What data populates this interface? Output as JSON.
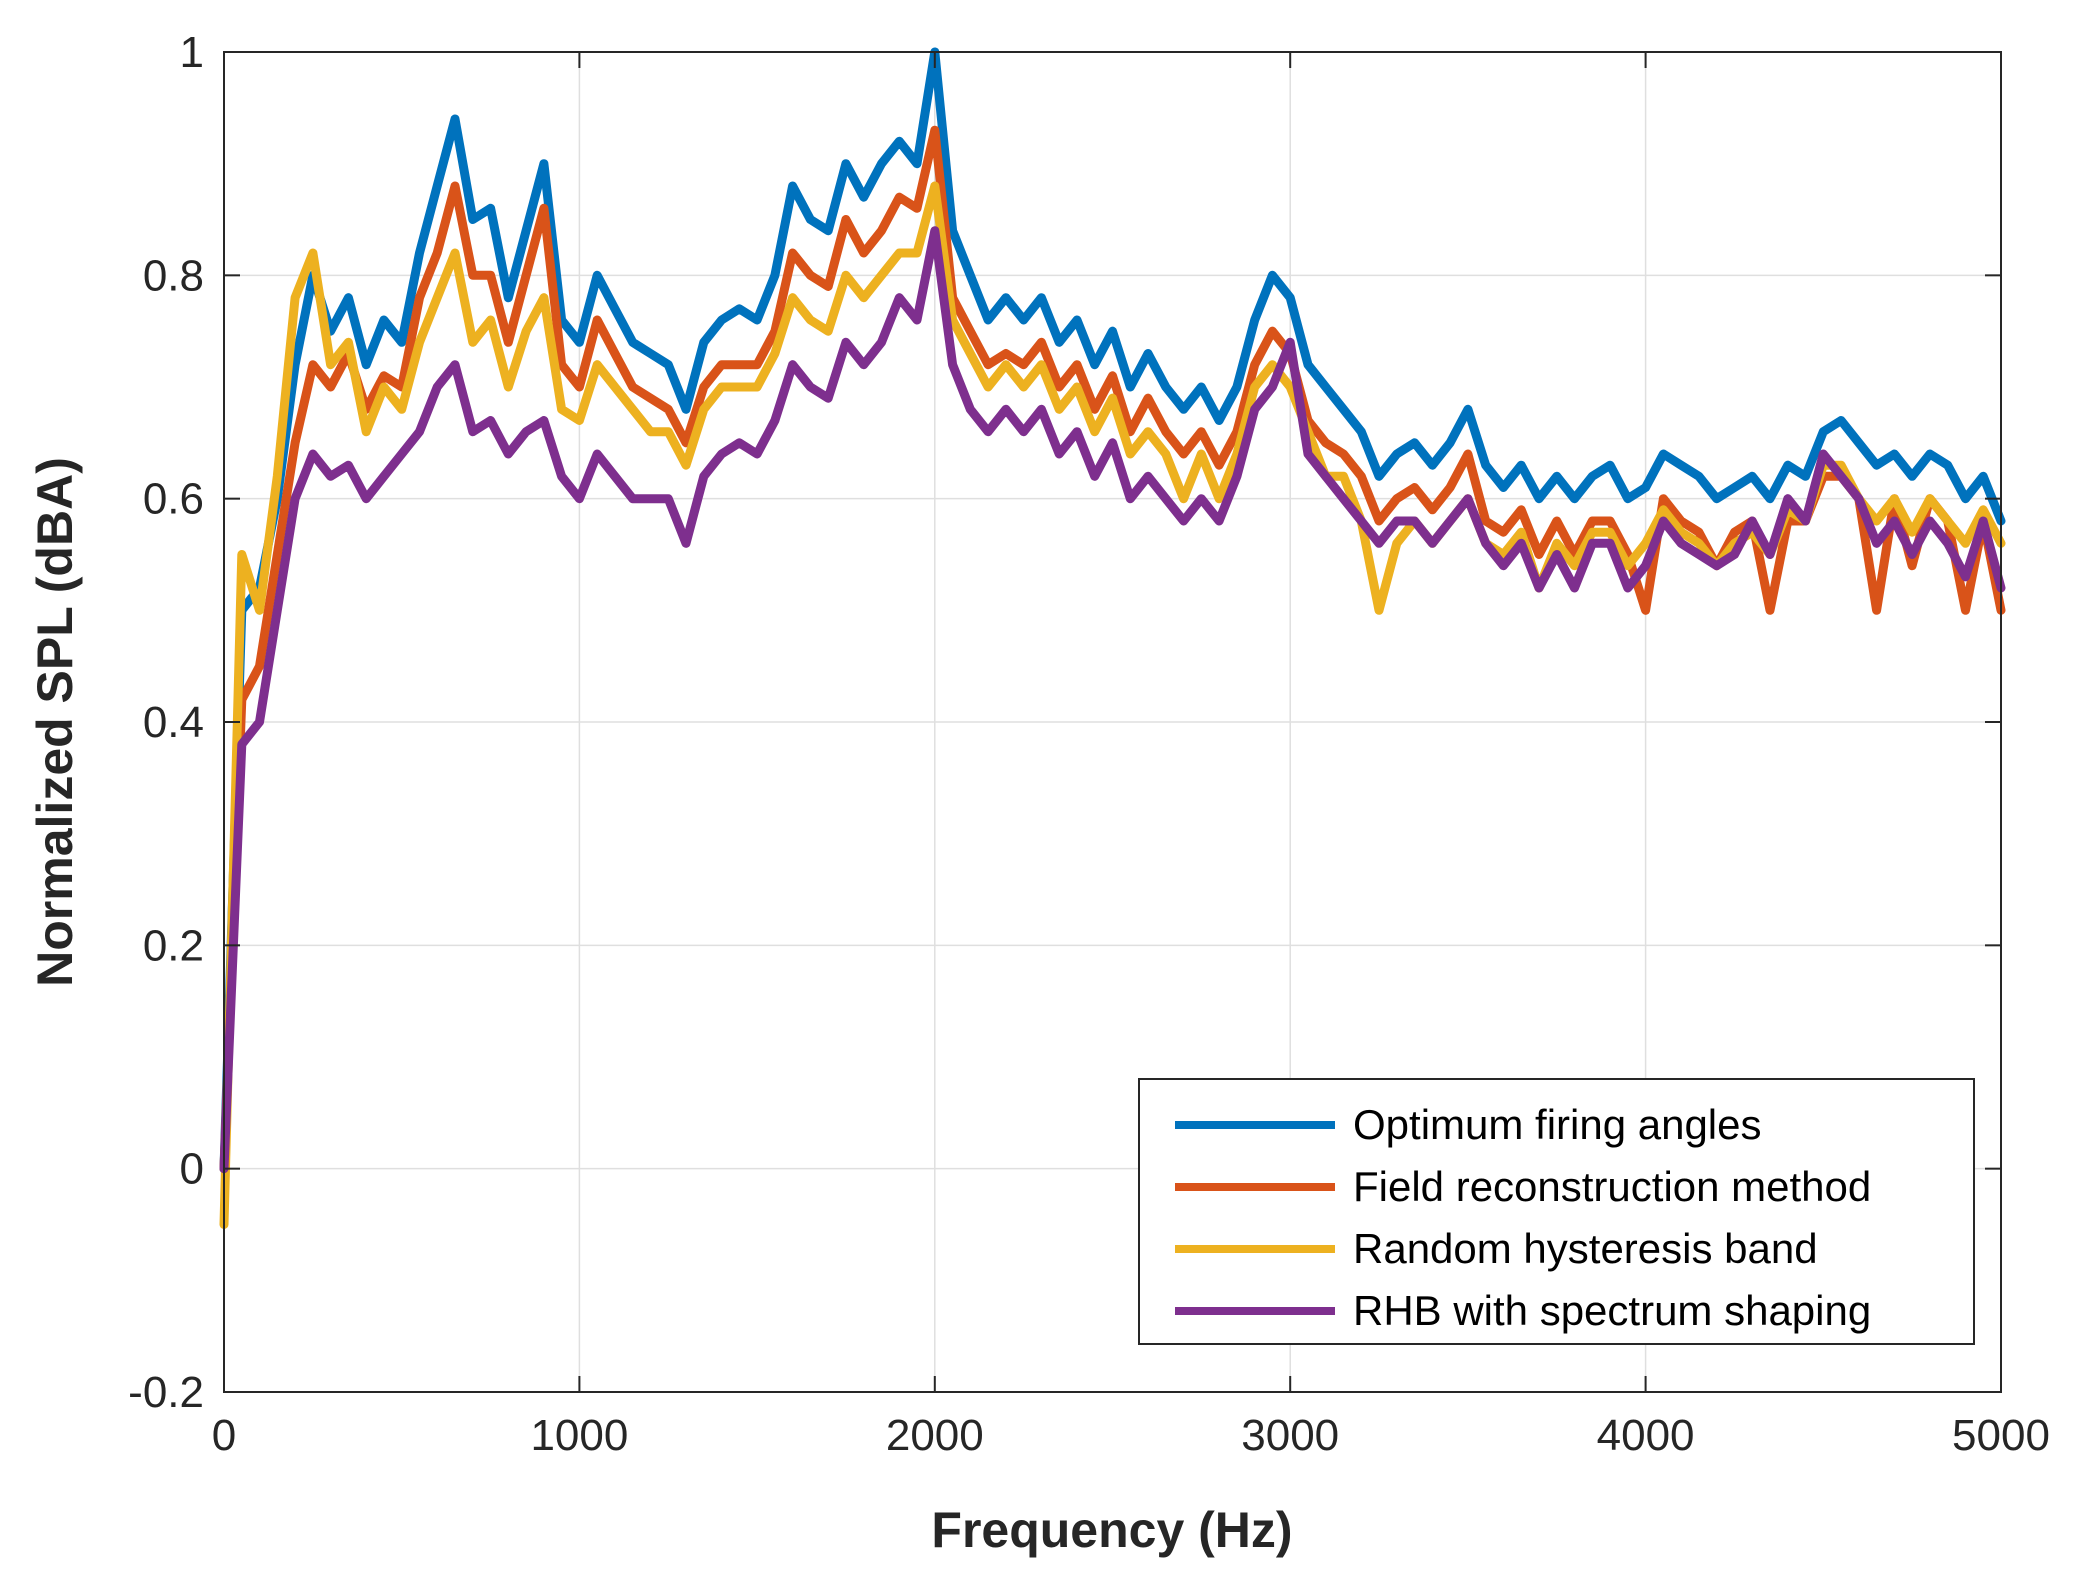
{
  "chart_data": {
    "type": "line",
    "title": "",
    "xlabel": "Frequency (Hz)",
    "ylabel": "Normalized SPL (dBA)",
    "xlim": [
      0,
      5000
    ],
    "ylim": [
      -0.2,
      1
    ],
    "xticks": [
      0,
      1000,
      2000,
      3000,
      4000,
      5000
    ],
    "xtick_labels": [
      "0",
      "1000",
      "2000",
      "3000",
      "4000",
      "5000"
    ],
    "yticks": [
      -0.2,
      0,
      0.2,
      0.4,
      0.6,
      0.8,
      1
    ],
    "ytick_labels": [
      "-0.2",
      "0",
      "0.2",
      "0.4",
      "0.6",
      "0.8",
      "1"
    ],
    "grid": true,
    "legend_position": "bottom-right",
    "series": [
      {
        "name": "Optimum firing angles",
        "color": "#0072BD",
        "x": [
          0,
          50,
          100,
          150,
          200,
          250,
          300,
          350,
          400,
          450,
          500,
          550,
          600,
          650,
          700,
          750,
          800,
          850,
          900,
          950,
          1000,
          1050,
          1100,
          1150,
          1200,
          1250,
          1300,
          1350,
          1400,
          1450,
          1500,
          1550,
          1600,
          1650,
          1700,
          1750,
          1800,
          1850,
          1900,
          1950,
          2000,
          2050,
          2100,
          2150,
          2200,
          2250,
          2300,
          2350,
          2400,
          2450,
          2500,
          2550,
          2600,
          2650,
          2700,
          2750,
          2800,
          2850,
          2900,
          2950,
          3000,
          3050,
          3100,
          3150,
          3200,
          3250,
          3300,
          3350,
          3400,
          3450,
          3500,
          3550,
          3600,
          3650,
          3700,
          3750,
          3800,
          3850,
          3900,
          3950,
          4000,
          4050,
          4100,
          4150,
          4200,
          4250,
          4300,
          4350,
          4400,
          4450,
          4500,
          4550,
          4600,
          4650,
          4700,
          4750,
          4800,
          4850,
          4900,
          4950,
          5000
        ],
        "y": [
          0.0,
          0.5,
          0.52,
          0.6,
          0.72,
          0.8,
          0.75,
          0.78,
          0.72,
          0.76,
          0.74,
          0.82,
          0.88,
          0.94,
          0.85,
          0.86,
          0.78,
          0.84,
          0.9,
          0.76,
          0.74,
          0.8,
          0.77,
          0.74,
          0.73,
          0.72,
          0.68,
          0.74,
          0.76,
          0.77,
          0.76,
          0.8,
          0.88,
          0.85,
          0.84,
          0.9,
          0.87,
          0.9,
          0.92,
          0.9,
          1.0,
          0.84,
          0.8,
          0.76,
          0.78,
          0.76,
          0.78,
          0.74,
          0.76,
          0.72,
          0.75,
          0.7,
          0.73,
          0.7,
          0.68,
          0.7,
          0.67,
          0.7,
          0.76,
          0.8,
          0.78,
          0.72,
          0.7,
          0.68,
          0.66,
          0.62,
          0.64,
          0.65,
          0.63,
          0.65,
          0.68,
          0.63,
          0.61,
          0.63,
          0.6,
          0.62,
          0.6,
          0.62,
          0.63,
          0.6,
          0.61,
          0.64,
          0.63,
          0.62,
          0.6,
          0.61,
          0.62,
          0.6,
          0.63,
          0.62,
          0.66,
          0.67,
          0.65,
          0.63,
          0.64,
          0.62,
          0.64,
          0.63,
          0.6,
          0.62,
          0.58
        ]
      },
      {
        "name": "Field reconstruction method",
        "color": "#D95319",
        "x": [
          0,
          50,
          100,
          150,
          200,
          250,
          300,
          350,
          400,
          450,
          500,
          550,
          600,
          650,
          700,
          750,
          800,
          850,
          900,
          950,
          1000,
          1050,
          1100,
          1150,
          1200,
          1250,
          1300,
          1350,
          1400,
          1450,
          1500,
          1550,
          1600,
          1650,
          1700,
          1750,
          1800,
          1850,
          1900,
          1950,
          2000,
          2050,
          2100,
          2150,
          2200,
          2250,
          2300,
          2350,
          2400,
          2450,
          2500,
          2550,
          2600,
          2650,
          2700,
          2750,
          2800,
          2850,
          2900,
          2950,
          3000,
          3050,
          3100,
          3150,
          3200,
          3250,
          3300,
          3350,
          3400,
          3450,
          3500,
          3550,
          3600,
          3650,
          3700,
          3750,
          3800,
          3850,
          3900,
          3950,
          4000,
          4050,
          4100,
          4150,
          4200,
          4250,
          4300,
          4350,
          4400,
          4450,
          4500,
          4550,
          4600,
          4650,
          4700,
          4750,
          4800,
          4850,
          4900,
          4950,
          5000
        ],
        "y": [
          0.0,
          0.42,
          0.45,
          0.55,
          0.65,
          0.72,
          0.7,
          0.73,
          0.68,
          0.71,
          0.7,
          0.78,
          0.82,
          0.88,
          0.8,
          0.8,
          0.74,
          0.8,
          0.86,
          0.72,
          0.7,
          0.76,
          0.73,
          0.7,
          0.69,
          0.68,
          0.65,
          0.7,
          0.72,
          0.72,
          0.72,
          0.75,
          0.82,
          0.8,
          0.79,
          0.85,
          0.82,
          0.84,
          0.87,
          0.86,
          0.93,
          0.78,
          0.75,
          0.72,
          0.73,
          0.72,
          0.74,
          0.7,
          0.72,
          0.68,
          0.71,
          0.66,
          0.69,
          0.66,
          0.64,
          0.66,
          0.63,
          0.66,
          0.72,
          0.75,
          0.73,
          0.67,
          0.65,
          0.64,
          0.62,
          0.58,
          0.6,
          0.61,
          0.59,
          0.61,
          0.64,
          0.58,
          0.57,
          0.59,
          0.55,
          0.58,
          0.55,
          0.58,
          0.58,
          0.55,
          0.5,
          0.6,
          0.58,
          0.57,
          0.54,
          0.57,
          0.58,
          0.5,
          0.58,
          0.58,
          0.62,
          0.62,
          0.6,
          0.5,
          0.6,
          0.54,
          0.6,
          0.58,
          0.5,
          0.58,
          0.5
        ]
      },
      {
        "name": "Random hysteresis band",
        "color": "#EDB120",
        "x": [
          0,
          50,
          100,
          150,
          200,
          250,
          300,
          350,
          400,
          450,
          500,
          550,
          600,
          650,
          700,
          750,
          800,
          850,
          900,
          950,
          1000,
          1050,
          1100,
          1150,
          1200,
          1250,
          1300,
          1350,
          1400,
          1450,
          1500,
          1550,
          1600,
          1650,
          1700,
          1750,
          1800,
          1850,
          1900,
          1950,
          2000,
          2050,
          2100,
          2150,
          2200,
          2250,
          2300,
          2350,
          2400,
          2450,
          2500,
          2550,
          2600,
          2650,
          2700,
          2750,
          2800,
          2850,
          2900,
          2950,
          3000,
          3050,
          3100,
          3150,
          3200,
          3250,
          3300,
          3350,
          3400,
          3450,
          3500,
          3550,
          3600,
          3650,
          3700,
          3750,
          3800,
          3850,
          3900,
          3950,
          4000,
          4050,
          4100,
          4150,
          4200,
          4250,
          4300,
          4350,
          4400,
          4450,
          4500,
          4550,
          4600,
          4650,
          4700,
          4750,
          4800,
          4850,
          4900,
          4950,
          5000
        ],
        "y": [
          -0.05,
          0.55,
          0.5,
          0.62,
          0.78,
          0.82,
          0.72,
          0.74,
          0.66,
          0.7,
          0.68,
          0.74,
          0.78,
          0.82,
          0.74,
          0.76,
          0.7,
          0.75,
          0.78,
          0.68,
          0.67,
          0.72,
          0.7,
          0.68,
          0.66,
          0.66,
          0.63,
          0.68,
          0.7,
          0.7,
          0.7,
          0.73,
          0.78,
          0.76,
          0.75,
          0.8,
          0.78,
          0.8,
          0.82,
          0.82,
          0.88,
          0.76,
          0.73,
          0.7,
          0.72,
          0.7,
          0.72,
          0.68,
          0.7,
          0.66,
          0.69,
          0.64,
          0.66,
          0.64,
          0.6,
          0.64,
          0.6,
          0.64,
          0.7,
          0.72,
          0.7,
          0.66,
          0.62,
          0.62,
          0.58,
          0.5,
          0.56,
          0.58,
          0.56,
          0.58,
          0.6,
          0.56,
          0.55,
          0.57,
          0.52,
          0.56,
          0.54,
          0.57,
          0.57,
          0.54,
          0.56,
          0.59,
          0.57,
          0.56,
          0.54,
          0.56,
          0.57,
          0.55,
          0.59,
          0.58,
          0.63,
          0.63,
          0.6,
          0.58,
          0.6,
          0.57,
          0.6,
          0.58,
          0.56,
          0.59,
          0.56
        ]
      },
      {
        "name": "RHB with spectrum shaping",
        "color": "#7E2F8E",
        "x": [
          0,
          50,
          100,
          150,
          200,
          250,
          300,
          350,
          400,
          450,
          500,
          550,
          600,
          650,
          700,
          750,
          800,
          850,
          900,
          950,
          1000,
          1050,
          1100,
          1150,
          1200,
          1250,
          1300,
          1350,
          1400,
          1450,
          1500,
          1550,
          1600,
          1650,
          1700,
          1750,
          1800,
          1850,
          1900,
          1950,
          2000,
          2050,
          2100,
          2150,
          2200,
          2250,
          2300,
          2350,
          2400,
          2450,
          2500,
          2550,
          2600,
          2650,
          2700,
          2750,
          2800,
          2850,
          2900,
          2950,
          3000,
          3050,
          3100,
          3150,
          3200,
          3250,
          3300,
          3350,
          3400,
          3450,
          3500,
          3550,
          3600,
          3650,
          3700,
          3750,
          3800,
          3850,
          3900,
          3950,
          4000,
          4050,
          4100,
          4150,
          4200,
          4250,
          4300,
          4350,
          4400,
          4450,
          4500,
          4550,
          4600,
          4650,
          4700,
          4750,
          4800,
          4850,
          4900,
          4950,
          5000
        ],
        "y": [
          0.0,
          0.38,
          0.4,
          0.5,
          0.6,
          0.64,
          0.62,
          0.63,
          0.6,
          0.62,
          0.64,
          0.66,
          0.7,
          0.72,
          0.66,
          0.67,
          0.64,
          0.66,
          0.67,
          0.62,
          0.6,
          0.64,
          0.62,
          0.6,
          0.6,
          0.6,
          0.56,
          0.62,
          0.64,
          0.65,
          0.64,
          0.67,
          0.72,
          0.7,
          0.69,
          0.74,
          0.72,
          0.74,
          0.78,
          0.76,
          0.84,
          0.72,
          0.68,
          0.66,
          0.68,
          0.66,
          0.68,
          0.64,
          0.66,
          0.62,
          0.65,
          0.6,
          0.62,
          0.6,
          0.58,
          0.6,
          0.58,
          0.62,
          0.68,
          0.7,
          0.74,
          0.64,
          0.62,
          0.6,
          0.58,
          0.56,
          0.58,
          0.58,
          0.56,
          0.58,
          0.6,
          0.56,
          0.54,
          0.56,
          0.52,
          0.55,
          0.52,
          0.56,
          0.56,
          0.52,
          0.54,
          0.58,
          0.56,
          0.55,
          0.54,
          0.55,
          0.58,
          0.55,
          0.6,
          0.58,
          0.64,
          0.62,
          0.6,
          0.56,
          0.58,
          0.55,
          0.58,
          0.56,
          0.53,
          0.58,
          0.52
        ]
      }
    ]
  }
}
